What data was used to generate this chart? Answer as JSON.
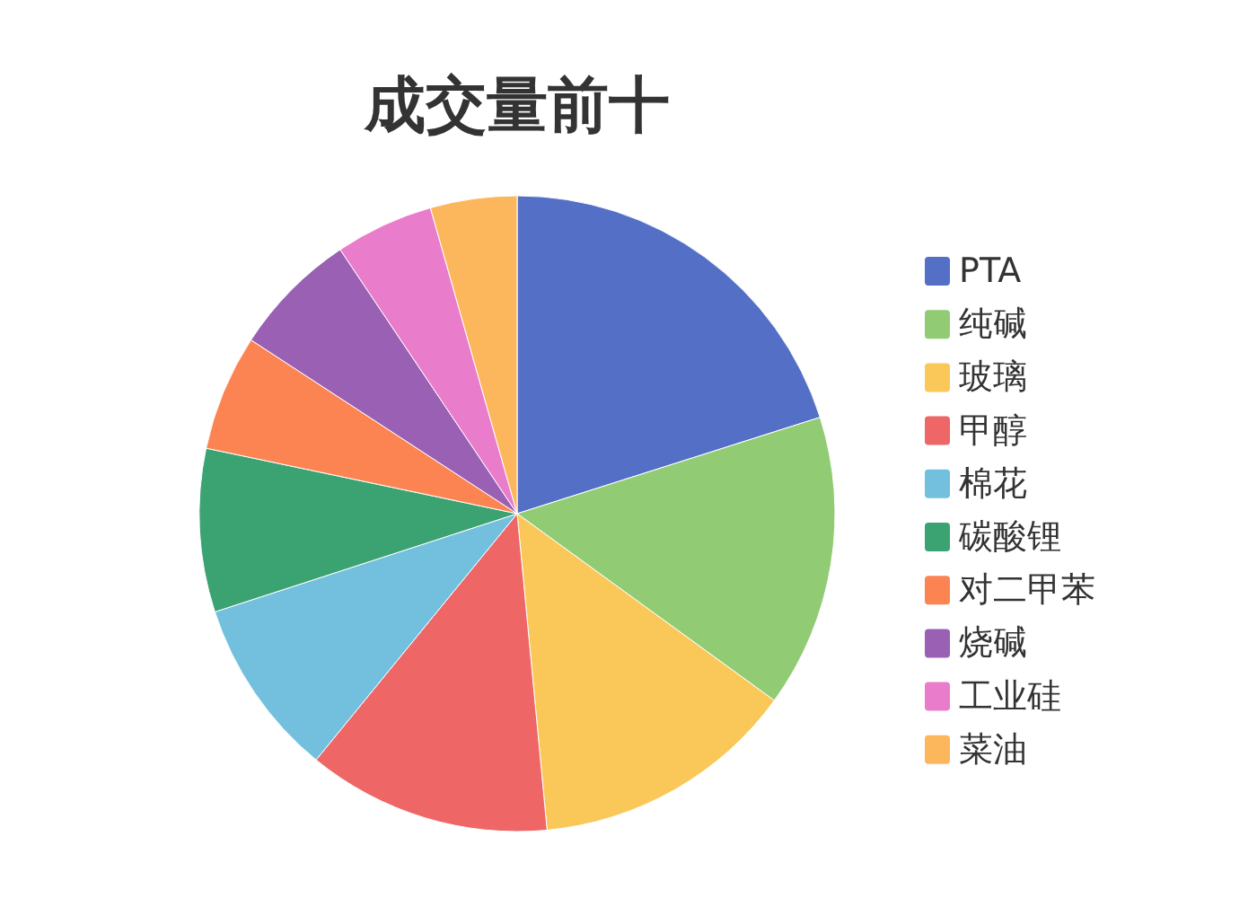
{
  "chart_data": {
    "type": "pie",
    "title": "成交量前十",
    "categories": [
      "PTA",
      "纯碱",
      "玻璃",
      "甲醇",
      "棉花",
      "碳酸锂",
      "对二甲苯",
      "烧碱",
      "工业硅",
      "菜油"
    ],
    "values": [
      20.1,
      14.9,
      13.5,
      12.4,
      9.1,
      8.3,
      5.9,
      6.4,
      5.0,
      4.4
    ],
    "colors": [
      "#5470c6",
      "#91cc75",
      "#fac858",
      "#ee6666",
      "#73c0de",
      "#3ba272",
      "#fc8452",
      "#9a60b4",
      "#ea7ccc",
      "#fcb65c"
    ],
    "legend": "right"
  }
}
